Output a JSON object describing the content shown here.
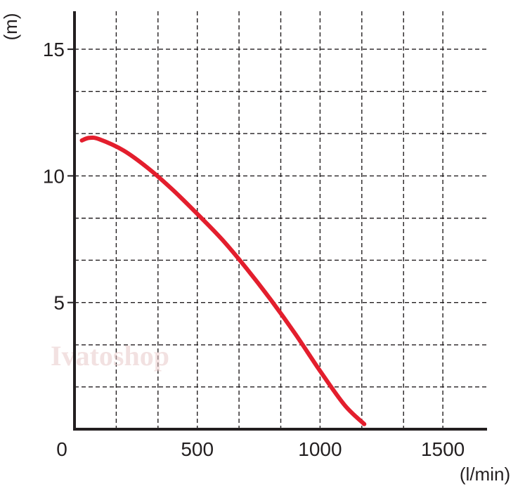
{
  "chart_data": {
    "type": "line",
    "title": "",
    "xlabel": "(l/min)",
    "ylabel": "(m)",
    "xlim": [
      0,
      1680
    ],
    "ylim": [
      0,
      16.5
    ],
    "x_ticks": [
      {
        "value": 0,
        "label": "0"
      },
      {
        "value": 500,
        "label": "500"
      },
      {
        "value": 1000,
        "label": "1000"
      },
      {
        "value": 1500,
        "label": "1500"
      }
    ],
    "y_ticks": [
      {
        "value": 5,
        "label": "5"
      },
      {
        "value": 10,
        "label": "10"
      },
      {
        "value": 15,
        "label": "15"
      }
    ],
    "x_grid": [
      170,
      340,
      500,
      670,
      840,
      1000,
      1170,
      1340,
      1500
    ],
    "y_grid": [
      1.67,
      3.33,
      5,
      6.67,
      8.33,
      10,
      11.67,
      13.33,
      15
    ],
    "grid": true,
    "series": [
      {
        "color": "#e31e2d",
        "x": [
          30,
          60,
          100,
          200,
          300,
          400,
          500,
          600,
          700,
          800,
          900,
          1000,
          1100,
          1180
        ],
        "y": [
          11.4,
          11.5,
          11.45,
          11.0,
          10.3,
          9.45,
          8.5,
          7.5,
          6.35,
          5.1,
          3.75,
          2.3,
          0.95,
          0.2
        ]
      }
    ]
  },
  "watermark": "Ivatoshop"
}
